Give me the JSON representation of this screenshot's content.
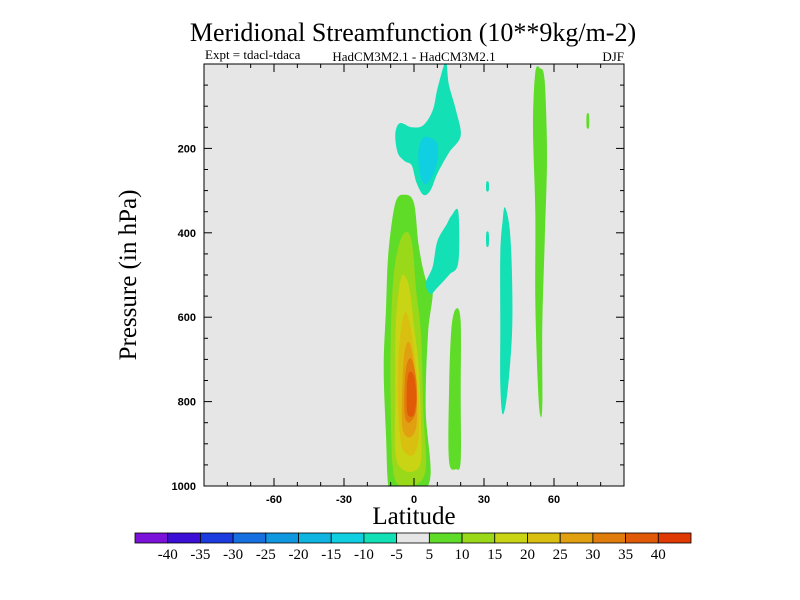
{
  "chart_data": {
    "type": "contour",
    "title": "Meridional Streamfunction (10**9kg/m-2)",
    "subtitle_left": "Expt = tdacl-tdaca",
    "subtitle_center": "HadCM3M2.1 - HadCM3M2.1",
    "subtitle_right": "DJF",
    "xlabel": "Latitude",
    "ylabel": "Pressure (in hPa)",
    "xlim": [
      -90,
      90
    ],
    "ylim": [
      1000,
      0
    ],
    "x_ticks": [
      -60,
      -30,
      0,
      30,
      60
    ],
    "y_ticks": [
      200,
      400,
      600,
      800,
      1000
    ],
    "background_color": "#e6e6e6",
    "colorbar": {
      "levels": [
        -40,
        -35,
        -30,
        -25,
        -20,
        -15,
        -10,
        -5,
        5,
        10,
        15,
        20,
        25,
        30,
        35,
        40
      ],
      "colors": [
        "#7a12d9",
        "#3b0fd6",
        "#1c3ce0",
        "#1770e0",
        "#0f97e0",
        "#0fb5e0",
        "#10cfe0",
        "#14e0b5",
        "#e6e6e6",
        "#5edc28",
        "#9ad81a",
        "#c8d414",
        "#d9c010",
        "#e0a010",
        "#e07c0c",
        "#e05a08",
        "#e03a04"
      ]
    },
    "features": [
      {
        "name": "main-positive-cell",
        "level": 5,
        "points": [
          [
            -11,
            1000
          ],
          [
            -12,
            880
          ],
          [
            -13,
            720
          ],
          [
            -12,
            580
          ],
          [
            -11,
            450
          ],
          [
            -8,
            330
          ],
          [
            -4,
            310
          ],
          [
            0,
            330
          ],
          [
            2,
            430
          ],
          [
            5,
            510
          ],
          [
            8,
            540
          ],
          [
            6,
            640
          ],
          [
            5,
            820
          ],
          [
            7,
            980
          ],
          [
            0,
            1030
          ],
          [
            -8,
            1040
          ]
        ]
      },
      {
        "name": "main-positive-cell",
        "level": 10,
        "points": [
          [
            -9,
            960
          ],
          [
            -10,
            820
          ],
          [
            -10,
            660
          ],
          [
            -9,
            520
          ],
          [
            -7,
            440
          ],
          [
            -4,
            400
          ],
          [
            -1,
            420
          ],
          [
            1,
            540
          ],
          [
            3,
            640
          ],
          [
            4,
            820
          ],
          [
            5,
            960
          ],
          [
            0,
            1000
          ],
          [
            -6,
            1000
          ]
        ]
      },
      {
        "name": "main-positive-cell",
        "level": 15,
        "points": [
          [
            -8,
            920
          ],
          [
            -8,
            780
          ],
          [
            -8,
            650
          ],
          [
            -7,
            560
          ],
          [
            -5,
            500
          ],
          [
            -2,
            530
          ],
          [
            0,
            620
          ],
          [
            2,
            720
          ],
          [
            3,
            850
          ],
          [
            3,
            940
          ],
          [
            0,
            965
          ],
          [
            -5,
            960
          ]
        ]
      },
      {
        "name": "main-positive-cell",
        "level": 20,
        "points": [
          [
            -6,
            880
          ],
          [
            -7,
            760
          ],
          [
            -6,
            650
          ],
          [
            -4,
            590
          ],
          [
            -2,
            610
          ],
          [
            0,
            680
          ],
          [
            2,
            790
          ],
          [
            2,
            880
          ],
          [
            0,
            925
          ],
          [
            -4,
            920
          ]
        ]
      },
      {
        "name": "main-positive-cell",
        "level": 25,
        "points": [
          [
            -5,
            860
          ],
          [
            -5,
            760
          ],
          [
            -4,
            680
          ],
          [
            -2,
            660
          ],
          [
            0,
            710
          ],
          [
            1,
            790
          ],
          [
            1,
            860
          ],
          [
            -2,
            885
          ]
        ]
      },
      {
        "name": "main-positive-cell",
        "level": 30,
        "points": [
          [
            -4,
            830
          ],
          [
            -4,
            760
          ],
          [
            -3,
            710
          ],
          [
            -1,
            700
          ],
          [
            1,
            750
          ],
          [
            1,
            820
          ],
          [
            -2,
            850
          ]
        ]
      },
      {
        "name": "main-positive-cell",
        "level": 35,
        "points": [
          [
            -3,
            820
          ],
          [
            -3,
            760
          ],
          [
            -2,
            730
          ],
          [
            0,
            740
          ],
          [
            1,
            790
          ],
          [
            0,
            830
          ],
          [
            -2,
            835
          ]
        ]
      },
      {
        "name": "sh-positive-band",
        "level": 5,
        "points": [
          [
            16,
            630
          ],
          [
            18,
            580
          ],
          [
            20,
            610
          ],
          [
            20,
            780
          ],
          [
            20,
            940
          ],
          [
            18,
            960
          ],
          [
            15,
            940
          ],
          [
            15,
            780
          ]
        ]
      },
      {
        "name": "upper-negative-cell",
        "level": -5,
        "points": [
          [
            -8,
            165
          ],
          [
            -6,
            140
          ],
          [
            -1,
            150
          ],
          [
            4,
            145
          ],
          [
            8,
            110
          ],
          [
            10,
            60
          ],
          [
            13,
            0
          ],
          [
            14,
            0
          ],
          [
            15,
            50
          ],
          [
            18,
            110
          ],
          [
            20,
            170
          ],
          [
            15,
            210
          ],
          [
            10,
            260
          ],
          [
            7,
            300
          ],
          [
            4,
            310
          ],
          [
            1,
            280
          ],
          [
            -1,
            240
          ],
          [
            -4,
            230
          ],
          [
            -7,
            210
          ]
        ]
      },
      {
        "name": "upper-negative-cell",
        "level": -10,
        "points": [
          [
            2,
            200
          ],
          [
            4,
            175
          ],
          [
            7,
            175
          ],
          [
            10,
            190
          ],
          [
            10,
            230
          ],
          [
            8,
            265
          ],
          [
            5,
            285
          ],
          [
            3,
            270
          ],
          [
            2,
            240
          ]
        ]
      },
      {
        "name": "mid-negative-patch",
        "level": -5,
        "points": [
          [
            5,
            520
          ],
          [
            8,
            480
          ],
          [
            10,
            420
          ],
          [
            14,
            380
          ],
          [
            16,
            360
          ],
          [
            19,
            350
          ],
          [
            19,
            470
          ],
          [
            15,
            500
          ],
          [
            10,
            530
          ],
          [
            7,
            545
          ]
        ]
      },
      {
        "name": "sh-negative-band",
        "level": -5,
        "points": [
          [
            39,
            340
          ],
          [
            41,
            390
          ],
          [
            42,
            500
          ],
          [
            42,
            640
          ],
          [
            40,
            780
          ],
          [
            38,
            830
          ],
          [
            37,
            760
          ],
          [
            37,
            620
          ],
          [
            37,
            450
          ],
          [
            38,
            370
          ]
        ]
      },
      {
        "name": "sh-negative-sliver",
        "level": -5,
        "points": [
          [
            31,
            280
          ],
          [
            32,
            280
          ],
          [
            32,
            300
          ],
          [
            31,
            300
          ]
        ]
      },
      {
        "name": "sh-negative-sliver",
        "level": -5,
        "points": [
          [
            31,
            400
          ],
          [
            32,
            400
          ],
          [
            32,
            430
          ],
          [
            31,
            430
          ]
        ]
      },
      {
        "name": "far-sh-positive-band",
        "level": 5,
        "points": [
          [
            52,
            20
          ],
          [
            54,
            10
          ],
          [
            56,
            40
          ],
          [
            57,
            220
          ],
          [
            56,
            420
          ],
          [
            55,
            620
          ],
          [
            55,
            810
          ],
          [
            54,
            830
          ],
          [
            53,
            750
          ],
          [
            52,
            560
          ],
          [
            52,
            350
          ],
          [
            51,
            150
          ]
        ]
      },
      {
        "name": "far-sh-positive-sliver",
        "level": 5,
        "points": [
          [
            74,
            120
          ],
          [
            75,
            120
          ],
          [
            75,
            150
          ],
          [
            74,
            150
          ]
        ]
      }
    ]
  }
}
